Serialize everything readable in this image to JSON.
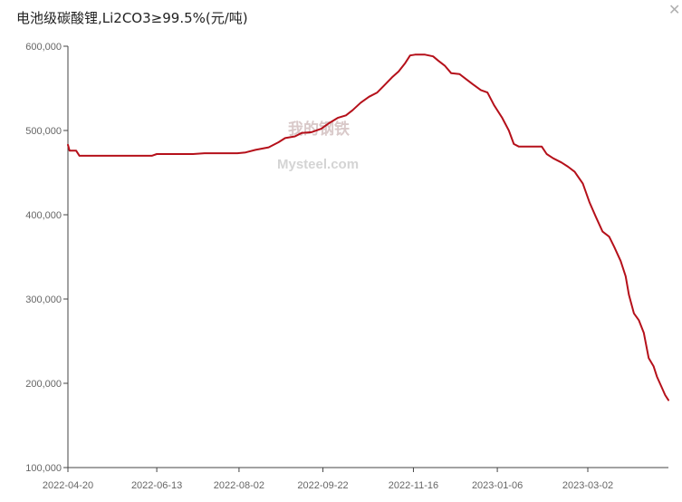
{
  "window": {
    "title": "电池级碳酸锂,Li2CO3≥99.5%(元/吨)",
    "close_glyph": "✕"
  },
  "watermark": {
    "chinese": "我的钢铁",
    "english": "Mysteel.com"
  },
  "colors": {
    "series": "#b5101a",
    "axis": "#444444",
    "text": "#666666"
  },
  "chart_data": {
    "type": "line",
    "title": "电池级碳酸锂,Li2CO3≥99.5%(元/吨)",
    "ylim": [
      100000,
      600000
    ],
    "y_ticks": [
      100000,
      200000,
      300000,
      400000,
      500000,
      600000
    ],
    "y_tick_labels": [
      "100,000",
      "200,000",
      "300,000",
      "400,000",
      "500,000",
      "600,000"
    ],
    "x_tick_labels": [
      "2022-04-20",
      "2022-06-13",
      "2022-08-02",
      "2022-09-22",
      "2022-11-16",
      "2023-01-06",
      "2023-03-02"
    ],
    "x_range": [
      "2022-04-20",
      "2023-04-20"
    ],
    "grid": false,
    "legend": "none",
    "series": [
      {
        "values": [
          [
            "2022-04-20",
            483000
          ],
          [
            "2022-04-21",
            476000
          ],
          [
            "2022-04-25",
            476000
          ],
          [
            "2022-04-27",
            470000
          ],
          [
            "2022-05-15",
            470000
          ],
          [
            "2022-06-10",
            470000
          ],
          [
            "2022-06-13",
            472000
          ],
          [
            "2022-07-05",
            472000
          ],
          [
            "2022-07-12",
            473000
          ],
          [
            "2022-08-01",
            473000
          ],
          [
            "2022-08-06",
            474000
          ],
          [
            "2022-08-12",
            477000
          ],
          [
            "2022-08-20",
            480000
          ],
          [
            "2022-08-26",
            486000
          ],
          [
            "2022-08-30",
            491000
          ],
          [
            "2022-09-05",
            493000
          ],
          [
            "2022-09-09",
            497000
          ],
          [
            "2022-09-15",
            498000
          ],
          [
            "2022-09-21",
            502000
          ],
          [
            "2022-09-26",
            509000
          ],
          [
            "2022-10-01",
            515000
          ],
          [
            "2022-10-06",
            518000
          ],
          [
            "2022-10-10",
            524000
          ],
          [
            "2022-10-15",
            533000
          ],
          [
            "2022-10-20",
            540000
          ],
          [
            "2022-10-25",
            545000
          ],
          [
            "2022-10-29",
            553000
          ],
          [
            "2022-11-03",
            563000
          ],
          [
            "2022-11-07",
            570000
          ],
          [
            "2022-11-11",
            580000
          ],
          [
            "2022-11-14",
            589000
          ],
          [
            "2022-11-17",
            590000
          ],
          [
            "2022-11-23",
            590000
          ],
          [
            "2022-11-28",
            588000
          ],
          [
            "2022-12-01",
            583000
          ],
          [
            "2022-12-05",
            577000
          ],
          [
            "2022-12-09",
            568000
          ],
          [
            "2022-12-14",
            567000
          ],
          [
            "2022-12-18",
            561000
          ],
          [
            "2022-12-22",
            555000
          ],
          [
            "2022-12-27",
            548000
          ],
          [
            "2022-12-31",
            545000
          ],
          [
            "2023-01-04",
            530000
          ],
          [
            "2023-01-09",
            515000
          ],
          [
            "2023-01-13",
            500000
          ],
          [
            "2023-01-16",
            484000
          ],
          [
            "2023-01-19",
            481000
          ],
          [
            "2023-01-26",
            481000
          ],
          [
            "2023-02-02",
            481000
          ],
          [
            "2023-02-05",
            472000
          ],
          [
            "2023-02-09",
            467000
          ],
          [
            "2023-02-14",
            462000
          ],
          [
            "2023-02-18",
            457000
          ],
          [
            "2023-02-22",
            451000
          ],
          [
            "2023-02-27",
            437000
          ],
          [
            "2023-03-03",
            415000
          ],
          [
            "2023-03-07",
            397000
          ],
          [
            "2023-03-11",
            380000
          ],
          [
            "2023-03-15",
            374000
          ],
          [
            "2023-03-18",
            362000
          ],
          [
            "2023-03-22",
            345000
          ],
          [
            "2023-03-25",
            327000
          ],
          [
            "2023-03-27",
            305000
          ],
          [
            "2023-03-30",
            283000
          ],
          [
            "2023-04-02",
            275000
          ],
          [
            "2023-04-05",
            260000
          ],
          [
            "2023-04-08",
            230000
          ],
          [
            "2023-04-11",
            220000
          ],
          [
            "2023-04-13",
            208000
          ],
          [
            "2023-04-16",
            195000
          ],
          [
            "2023-04-18",
            186000
          ],
          [
            "2023-04-20",
            180000
          ]
        ]
      }
    ]
  }
}
